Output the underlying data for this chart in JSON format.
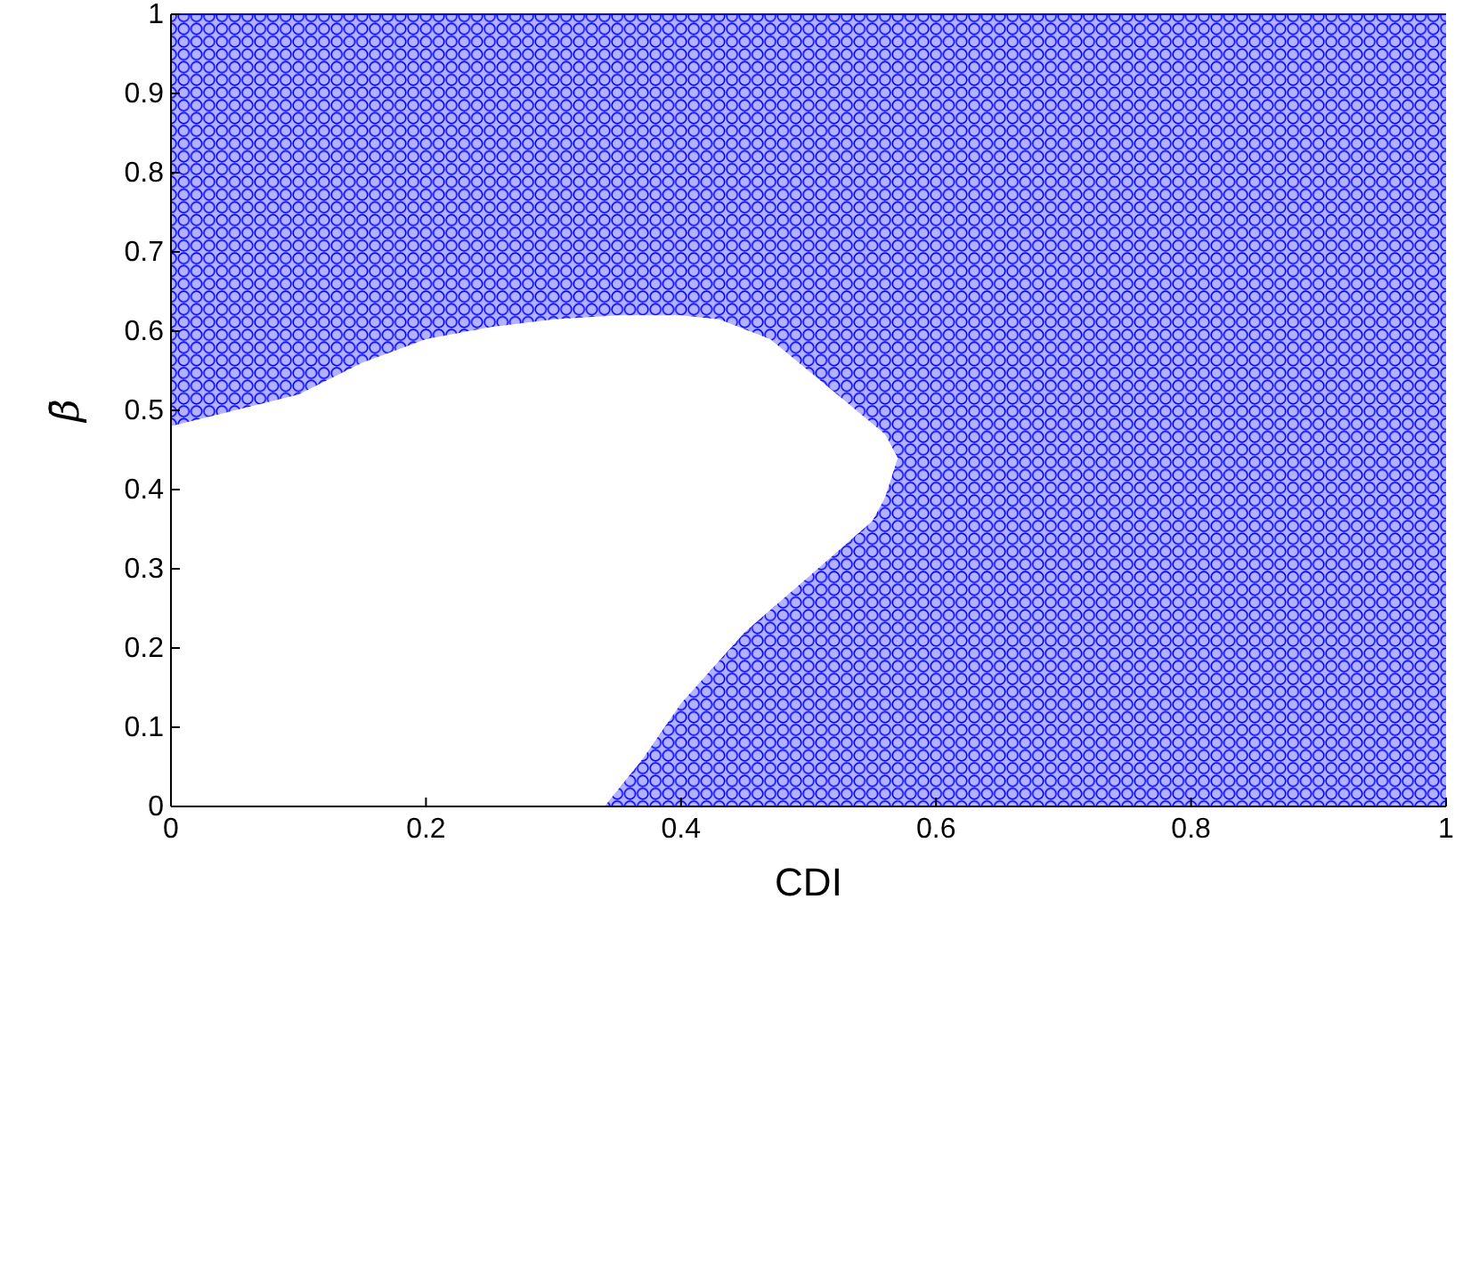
{
  "chart_data": {
    "type": "area",
    "xlabel": "CDI",
    "ylabel": "β̄",
    "xlim": [
      0,
      1
    ],
    "ylim": [
      0,
      1
    ],
    "xticks": [
      0,
      0.2,
      0.4,
      0.6,
      0.8,
      1
    ],
    "yticks": [
      0,
      0.1,
      0.2,
      0.3,
      0.4,
      0.5,
      0.6,
      0.7,
      0.8,
      0.9,
      1
    ],
    "series": [
      {
        "type": "line",
        "color": "#0000ff",
        "x": [
          0,
          0.05,
          0.1,
          0.15,
          0.2,
          0.25,
          0.3,
          0.35,
          0.4,
          0.43,
          0.47,
          0.5,
          0.53,
          0.56,
          0.57,
          0.57,
          0.6,
          0.8,
          1
        ],
        "lower": [
          0.48,
          0.5,
          0.52,
          0.56,
          0.59,
          0.605,
          0.615,
          0.62,
          0.62,
          0.615,
          0.59,
          0.55,
          0.51,
          0.47,
          0.44,
          0,
          0,
          0,
          0
        ],
        "upper": [
          1,
          1,
          1,
          1,
          1,
          1,
          1,
          1,
          1,
          1,
          1,
          1,
          1,
          1,
          1,
          1,
          1,
          1,
          1
        ],
        "values": [
          1,
          1,
          1,
          1,
          1,
          1,
          1,
          1,
          1,
          1,
          1,
          1,
          1,
          1,
          1,
          1,
          1,
          1,
          1
        ]
      },
      {
        "color": "#0000ff",
        "x": [
          0.34,
          0.37,
          0.4,
          0.45,
          0.5,
          0.55,
          0.56,
          0.57
        ],
        "values": [
          0,
          0.06,
          0.13,
          0.22,
          0.29,
          0.36,
          0.39,
          0.44
        ]
      }
    ]
  }
}
